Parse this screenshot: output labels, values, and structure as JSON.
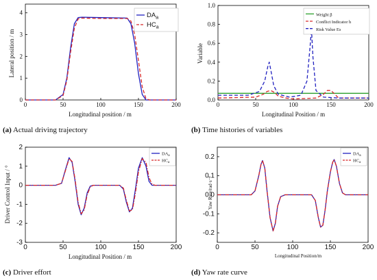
{
  "chart_data": [
    {
      "type": "line",
      "panel_id": "a",
      "caption_letter": "(a)",
      "caption_text": "Actual driving trajectory",
      "xlabel": "Longitudinal position / m",
      "ylabel": "Lateral position / m",
      "xlim": [
        0,
        200
      ],
      "ylim": [
        0,
        4.4
      ],
      "xticks": [
        "0",
        "50",
        "100",
        "150",
        "200"
      ],
      "yticks": [
        "0",
        "1",
        "2",
        "3",
        "4"
      ],
      "legend_position": "top-right",
      "series": [
        {
          "name": "DA",
          "name_sub": "a",
          "color": "#1f1fbf",
          "dash": "solid",
          "x": [
            0,
            40,
            50,
            55,
            60,
            65,
            70,
            75,
            100,
            135,
            140,
            145,
            150,
            155,
            160,
            200
          ],
          "y": [
            0,
            0,
            0.25,
            1.0,
            2.4,
            3.5,
            3.78,
            3.8,
            3.78,
            3.76,
            3.5,
            2.6,
            1.2,
            0.25,
            0,
            0
          ]
        },
        {
          "name": "HC",
          "name_sub": "a",
          "color": "#d62728",
          "dash": "dashed",
          "x": [
            0,
            40,
            50,
            55,
            60,
            65,
            70,
            75,
            100,
            135,
            140,
            145,
            150,
            155,
            160,
            165,
            200
          ],
          "y": [
            0,
            0,
            0.2,
            0.9,
            2.2,
            3.3,
            3.72,
            3.76,
            3.74,
            3.74,
            3.62,
            3.0,
            1.8,
            0.6,
            0.05,
            0,
            0
          ]
        }
      ]
    },
    {
      "type": "line",
      "panel_id": "b",
      "caption_letter": "(b)",
      "caption_text": "Time histories of variables",
      "xlabel": "Longitudinal Position / m",
      "ylabel": "Variable",
      "xlim": [
        0,
        200
      ],
      "ylim": [
        0,
        1.0
      ],
      "xticks": [
        "0",
        "50",
        "100",
        "150",
        "200"
      ],
      "yticks": [
        "0.0",
        "0.2",
        "0.4",
        "0.6",
        "0.8",
        "1.0"
      ],
      "legend_position": "top-right",
      "series": [
        {
          "name": "Weight β",
          "color": "#2ca02c",
          "dash": "solid",
          "x": [
            0,
            200
          ],
          "y": [
            0.07,
            0.07
          ]
        },
        {
          "name": "Conflict Indicator h",
          "color": "#d62728",
          "dash": "dashed",
          "x": [
            0,
            50,
            60,
            65,
            70,
            75,
            80,
            90,
            100,
            130,
            140,
            145,
            150,
            155,
            160,
            200
          ],
          "y": [
            0.02,
            0.03,
            0.06,
            0.09,
            0.1,
            0.08,
            0.04,
            0.02,
            0.01,
            0.02,
            0.06,
            0.1,
            0.1,
            0.06,
            0.02,
            0.02
          ]
        },
        {
          "name": "Risk Value Es",
          "color": "#1f1fbf",
          "dash": "dashed",
          "x": [
            0,
            40,
            55,
            62,
            66,
            68,
            70,
            74,
            80,
            95,
            110,
            118,
            122,
            124,
            126,
            130,
            140,
            160,
            200
          ],
          "y": [
            0.05,
            0.05,
            0.09,
            0.2,
            0.35,
            0.4,
            0.32,
            0.15,
            0.06,
            0.03,
            0.05,
            0.2,
            0.55,
            0.75,
            0.45,
            0.1,
            0.03,
            0.02,
            0.02
          ]
        }
      ]
    },
    {
      "type": "line",
      "panel_id": "c",
      "caption_letter": "(c)",
      "caption_text": "Driver effort",
      "xlabel": "Longitudinal Position / m",
      "ylabel": "Driver Control Input / °",
      "xlim": [
        0,
        200
      ],
      "ylim": [
        -3,
        2
      ],
      "xticks": [
        "0",
        "50",
        "100",
        "150",
        "200"
      ],
      "yticks": [
        "-3",
        "-2",
        "-1",
        "0",
        "1",
        "2"
      ],
      "legend_position": "top-right",
      "series": [
        {
          "name": "DA",
          "name_sub": "a",
          "color": "#1f1fbf",
          "dash": "solid",
          "x": [
            0,
            40,
            48,
            53,
            58,
            62,
            66,
            70,
            74,
            78,
            82,
            86,
            90,
            100,
            125,
            130,
            134,
            138,
            142,
            146,
            150,
            155,
            160,
            164,
            168,
            172,
            200
          ],
          "y": [
            0,
            0,
            0.1,
            0.8,
            1.45,
            1.2,
            0.2,
            -1.0,
            -1.55,
            -1.2,
            -0.4,
            -0.05,
            0,
            0,
            0,
            -0.2,
            -0.9,
            -1.4,
            -1.2,
            -0.2,
            0.9,
            1.45,
            1.0,
            0.2,
            0,
            0,
            0
          ]
        },
        {
          "name": "HC",
          "name_sub": "a",
          "color": "#d62728",
          "dash": "dashdot",
          "x": [
            0,
            40,
            48,
            53,
            58,
            62,
            66,
            70,
            74,
            78,
            82,
            86,
            90,
            100,
            125,
            130,
            134,
            138,
            142,
            146,
            150,
            155,
            160,
            164,
            168,
            172,
            200
          ],
          "y": [
            0,
            0,
            0.1,
            0.75,
            1.4,
            1.25,
            0.3,
            -0.9,
            -1.5,
            -1.3,
            -0.5,
            -0.1,
            0,
            0,
            0,
            -0.15,
            -0.8,
            -1.35,
            -1.3,
            -0.4,
            0.7,
            1.4,
            1.2,
            0.4,
            0.05,
            0,
            0
          ]
        }
      ]
    },
    {
      "type": "line",
      "panel_id": "d",
      "caption_letter": "(d)",
      "caption_text": "Yaw rate curve",
      "xlabel": "Longitudinal Position/m",
      "ylabel": "Yaw Rate/rad·s⁻¹",
      "xlim": [
        0,
        200
      ],
      "ylim": [
        -0.25,
        0.25
      ],
      "xticks": [
        "0",
        "50",
        "100",
        "150",
        "200"
      ],
      "yticks": [
        "-0.2",
        "-0.1",
        "0.0",
        "0.1",
        "0.2"
      ],
      "legend_position": "top-right",
      "series": [
        {
          "name": "DA",
          "name_sub": "a",
          "color": "#1f1fbf",
          "dash": "solid",
          "x": [
            0,
            45,
            50,
            55,
            58,
            60,
            63,
            66,
            70,
            74,
            77,
            80,
            84,
            90,
            100,
            125,
            130,
            134,
            137,
            140,
            143,
            146,
            150,
            153,
            155,
            158,
            162,
            166,
            170,
            200
          ],
          "y": [
            0,
            0,
            0.02,
            0.1,
            0.16,
            0.18,
            0.14,
            0.02,
            -0.12,
            -0.19,
            -0.15,
            -0.06,
            -0.01,
            0,
            0,
            0,
            -0.03,
            -0.12,
            -0.17,
            -0.16,
            -0.08,
            0.02,
            0.12,
            0.17,
            0.185,
            0.15,
            0.06,
            0.01,
            0,
            0
          ]
        },
        {
          "name": "HC",
          "name_sub": "a",
          "color": "#d62728",
          "dash": "dashdot",
          "x": [
            0,
            45,
            50,
            55,
            58,
            60,
            63,
            66,
            70,
            74,
            77,
            80,
            84,
            90,
            100,
            125,
            130,
            134,
            137,
            140,
            143,
            146,
            150,
            153,
            155,
            158,
            162,
            166,
            170,
            200
          ],
          "y": [
            0,
            0,
            0.02,
            0.1,
            0.16,
            0.18,
            0.14,
            0.02,
            -0.12,
            -0.19,
            -0.15,
            -0.06,
            -0.01,
            0,
            0,
            0,
            -0.03,
            -0.12,
            -0.17,
            -0.16,
            -0.08,
            0.02,
            0.12,
            0.17,
            0.185,
            0.15,
            0.06,
            0.01,
            0,
            0
          ]
        }
      ]
    }
  ]
}
